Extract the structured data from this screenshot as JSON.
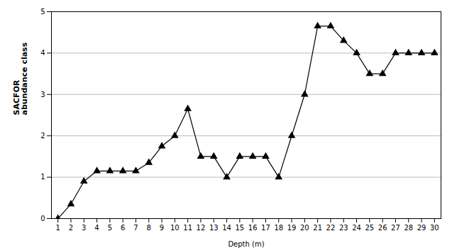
{
  "chart_data": {
    "type": "line",
    "x": [
      1,
      2,
      3,
      4,
      5,
      6,
      7,
      8,
      9,
      10,
      11,
      12,
      13,
      14,
      15,
      16,
      17,
      18,
      19,
      20,
      21,
      22,
      23,
      24,
      25,
      26,
      27,
      28,
      29,
      30
    ],
    "values": [
      0.0,
      0.35,
      0.9,
      1.15,
      1.15,
      1.15,
      1.15,
      1.35,
      1.75,
      2.0,
      2.65,
      1.5,
      1.5,
      1.0,
      1.5,
      1.5,
      1.5,
      1.0,
      2.0,
      3.0,
      4.65,
      4.65,
      4.3,
      4.0,
      3.5,
      3.5,
      4.0,
      4.0,
      4.0,
      4.0
    ],
    "xlabel": "Depth (m)",
    "ylabel": "SACFOR\nabundance class",
    "xlim": [
      0.5,
      30.5
    ],
    "xticks": [
      1,
      2,
      3,
      4,
      5,
      6,
      7,
      8,
      9,
      10,
      11,
      12,
      13,
      14,
      15,
      16,
      17,
      18,
      19,
      20,
      21,
      22,
      23,
      24,
      25,
      26,
      27,
      28,
      29,
      30
    ],
    "ylim": [
      0,
      5
    ],
    "yticks": [
      0,
      1,
      2,
      3,
      4,
      5
    ],
    "color": "#000000",
    "marker": "triangle",
    "grid": "y"
  }
}
